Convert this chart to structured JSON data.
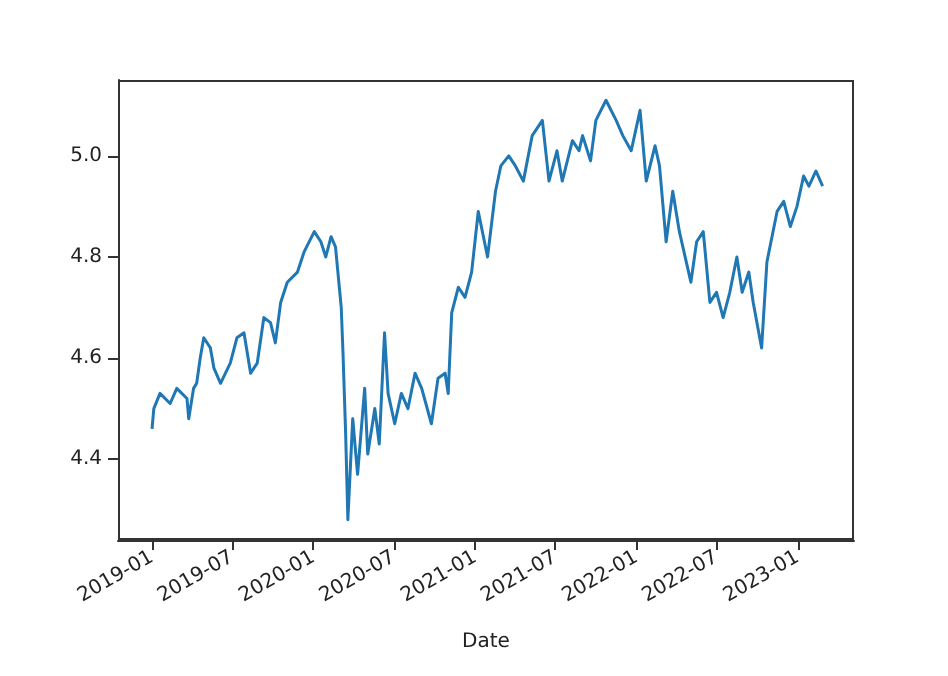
{
  "chart_data": {
    "type": "line",
    "xlabel": "Date",
    "xlim": [
      "2018-10-16",
      "2023-05-08"
    ],
    "ylim": [
      4.24,
      5.15
    ],
    "xticks": [
      "2019-01",
      "2019-07",
      "2020-01",
      "2020-07",
      "2021-01",
      "2021-07",
      "2022-01",
      "2022-07",
      "2023-01"
    ],
    "yticks": [
      {
        "value": 4.4,
        "label": "4.4"
      },
      {
        "value": 4.6,
        "label": "4.6"
      },
      {
        "value": 4.8,
        "label": "4.8"
      },
      {
        "value": 5,
        "label": "5.0"
      }
    ],
    "grid": false,
    "x": [
      "2019-01-01",
      "2019-01-05",
      "2019-01-19",
      "2019-02-11",
      "2019-02-26",
      "2019-03-21",
      "2019-03-25",
      "2019-04-05",
      "2019-04-12",
      "2019-04-20",
      "2019-04-28",
      "2019-05-13",
      "2019-05-21",
      "2019-06-05",
      "2019-06-27",
      "2019-07-12",
      "2019-07-28",
      "2019-08-12",
      "2019-08-27",
      "2019-09-11",
      "2019-09-26",
      "2019-10-07",
      "2019-10-19",
      "2019-11-03",
      "2019-11-26",
      "2019-12-11",
      "2020-01-03",
      "2020-01-18",
      "2020-01-29",
      "2020-02-10",
      "2020-02-20",
      "2020-03-04",
      "2020-03-08",
      "2020-03-14",
      "2020-03-19",
      "2020-03-30",
      "2020-04-10",
      "2020-04-26",
      "2020-05-03",
      "2020-05-19",
      "2020-05-29",
      "2020-06-10",
      "2020-06-18",
      "2020-07-03",
      "2020-07-18",
      "2020-08-02",
      "2020-08-18",
      "2020-09-02",
      "2020-09-24",
      "2020-10-09",
      "2020-10-25",
      "2020-11-01",
      "2020-11-09",
      "2020-11-24",
      "2020-12-09",
      "2020-12-24",
      "2021-01-08",
      "2021-01-29",
      "2021-02-16",
      "2021-02-28",
      "2021-03-18",
      "2021-04-02",
      "2021-04-20",
      "2021-05-10",
      "2021-06-02",
      "2021-06-17",
      "2021-07-05",
      "2021-07-17",
      "2021-08-09",
      "2021-08-24",
      "2021-09-01",
      "2021-09-19",
      "2021-10-01",
      "2021-10-24",
      "2021-11-16",
      "2021-12-01",
      "2021-12-20",
      "2022-01-09",
      "2022-01-23",
      "2022-02-12",
      "2022-02-22",
      "2022-03-09",
      "2022-03-24",
      "2022-04-08",
      "2022-05-04",
      "2022-05-17",
      "2022-06-01",
      "2022-06-16",
      "2022-07-01",
      "2022-07-16",
      "2022-07-31",
      "2022-08-16",
      "2022-08-28",
      "2022-09-12",
      "2022-09-22",
      "2022-10-11",
      "2022-10-23",
      "2022-11-15",
      "2022-11-30",
      "2022-12-15",
      "2022-12-30",
      "2023-01-14",
      "2023-01-26",
      "2023-02-11",
      "2023-02-26"
    ],
    "series": [
      {
        "color": "#1f77b4",
        "values": [
          4.46,
          4.5,
          4.53,
          4.51,
          4.54,
          4.52,
          4.48,
          4.54,
          4.55,
          4.6,
          4.64,
          4.62,
          4.58,
          4.55,
          4.59,
          4.64,
          4.65,
          4.57,
          4.59,
          4.68,
          4.67,
          4.63,
          4.71,
          4.75,
          4.77,
          4.81,
          4.85,
          4.83,
          4.8,
          4.84,
          4.82,
          4.7,
          4.61,
          4.45,
          4.28,
          4.48,
          4.37,
          4.54,
          4.41,
          4.5,
          4.43,
          4.65,
          4.53,
          4.47,
          4.53,
          4.5,
          4.57,
          4.54,
          4.47,
          4.56,
          4.57,
          4.53,
          4.69,
          4.74,
          4.72,
          4.77,
          4.89,
          4.8,
          4.93,
          4.98,
          5.0,
          4.98,
          4.95,
          5.04,
          5.07,
          4.95,
          5.01,
          4.95,
          5.03,
          5.01,
          5.04,
          4.99,
          5.07,
          5.11,
          5.07,
          5.04,
          5.01,
          5.09,
          4.95,
          5.02,
          4.98,
          4.83,
          4.93,
          4.85,
          4.75,
          4.83,
          4.85,
          4.71,
          4.73,
          4.68,
          4.73,
          4.8,
          4.73,
          4.77,
          4.71,
          4.62,
          4.79,
          4.89,
          4.91,
          4.86,
          4.9,
          4.96,
          4.94,
          4.97,
          4.94
        ]
      }
    ]
  }
}
